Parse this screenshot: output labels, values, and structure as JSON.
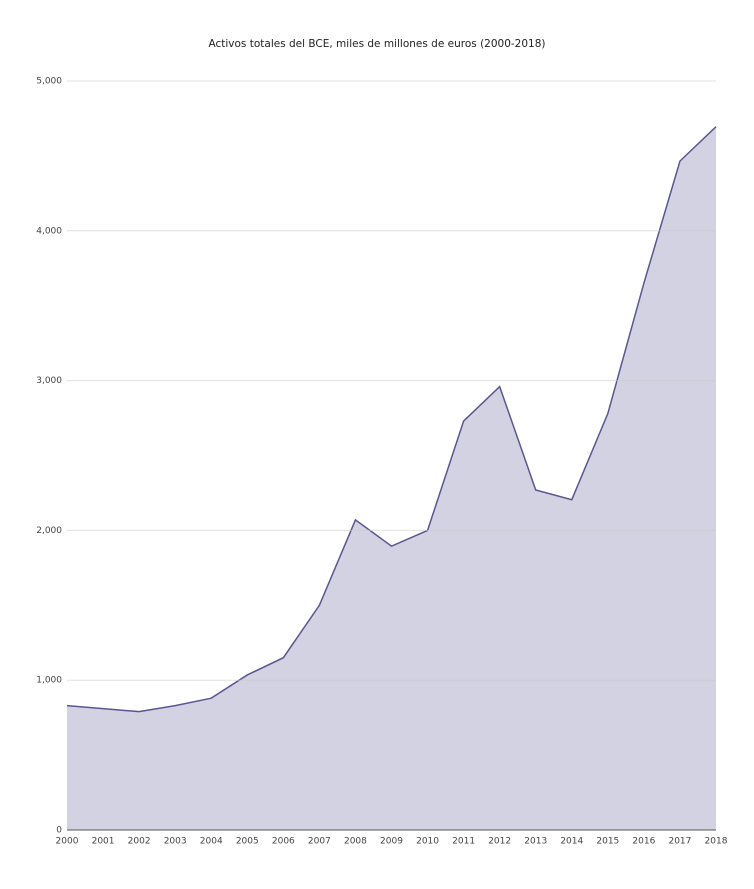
{
  "chart_data": {
    "type": "area",
    "title": "Activos totales del BCE, miles de millones de euros (2000-2018)",
    "x": [
      2000,
      2001,
      2002,
      2003,
      2004,
      2005,
      2006,
      2007,
      2008,
      2009,
      2010,
      2011,
      2012,
      2013,
      2014,
      2015,
      2016,
      2017,
      2018
    ],
    "series": [
      {
        "name": "Activos totales",
        "color": "#5b5690",
        "fill": "#d3d2e2",
        "values": [
          830,
          810,
          790,
          830,
          880,
          1035,
          1150,
          1500,
          2070,
          1895,
          2000,
          2730,
          2960,
          2270,
          2205,
          2780,
          3650,
          4465,
          4695
        ]
      }
    ],
    "xlim": [
      2000,
      2018
    ],
    "ylim": [
      0,
      5000
    ],
    "yticks": [
      0,
      {
        "value": 1000,
        "label": "1,000"
      },
      {
        "value": 2000,
        "label": "2,000"
      },
      {
        "value": 3000,
        "label": "3,000"
      },
      {
        "value": 4000,
        "label": "4,000"
      },
      {
        "value": 5000,
        "label": "5,000"
      }
    ],
    "grid": true
  }
}
